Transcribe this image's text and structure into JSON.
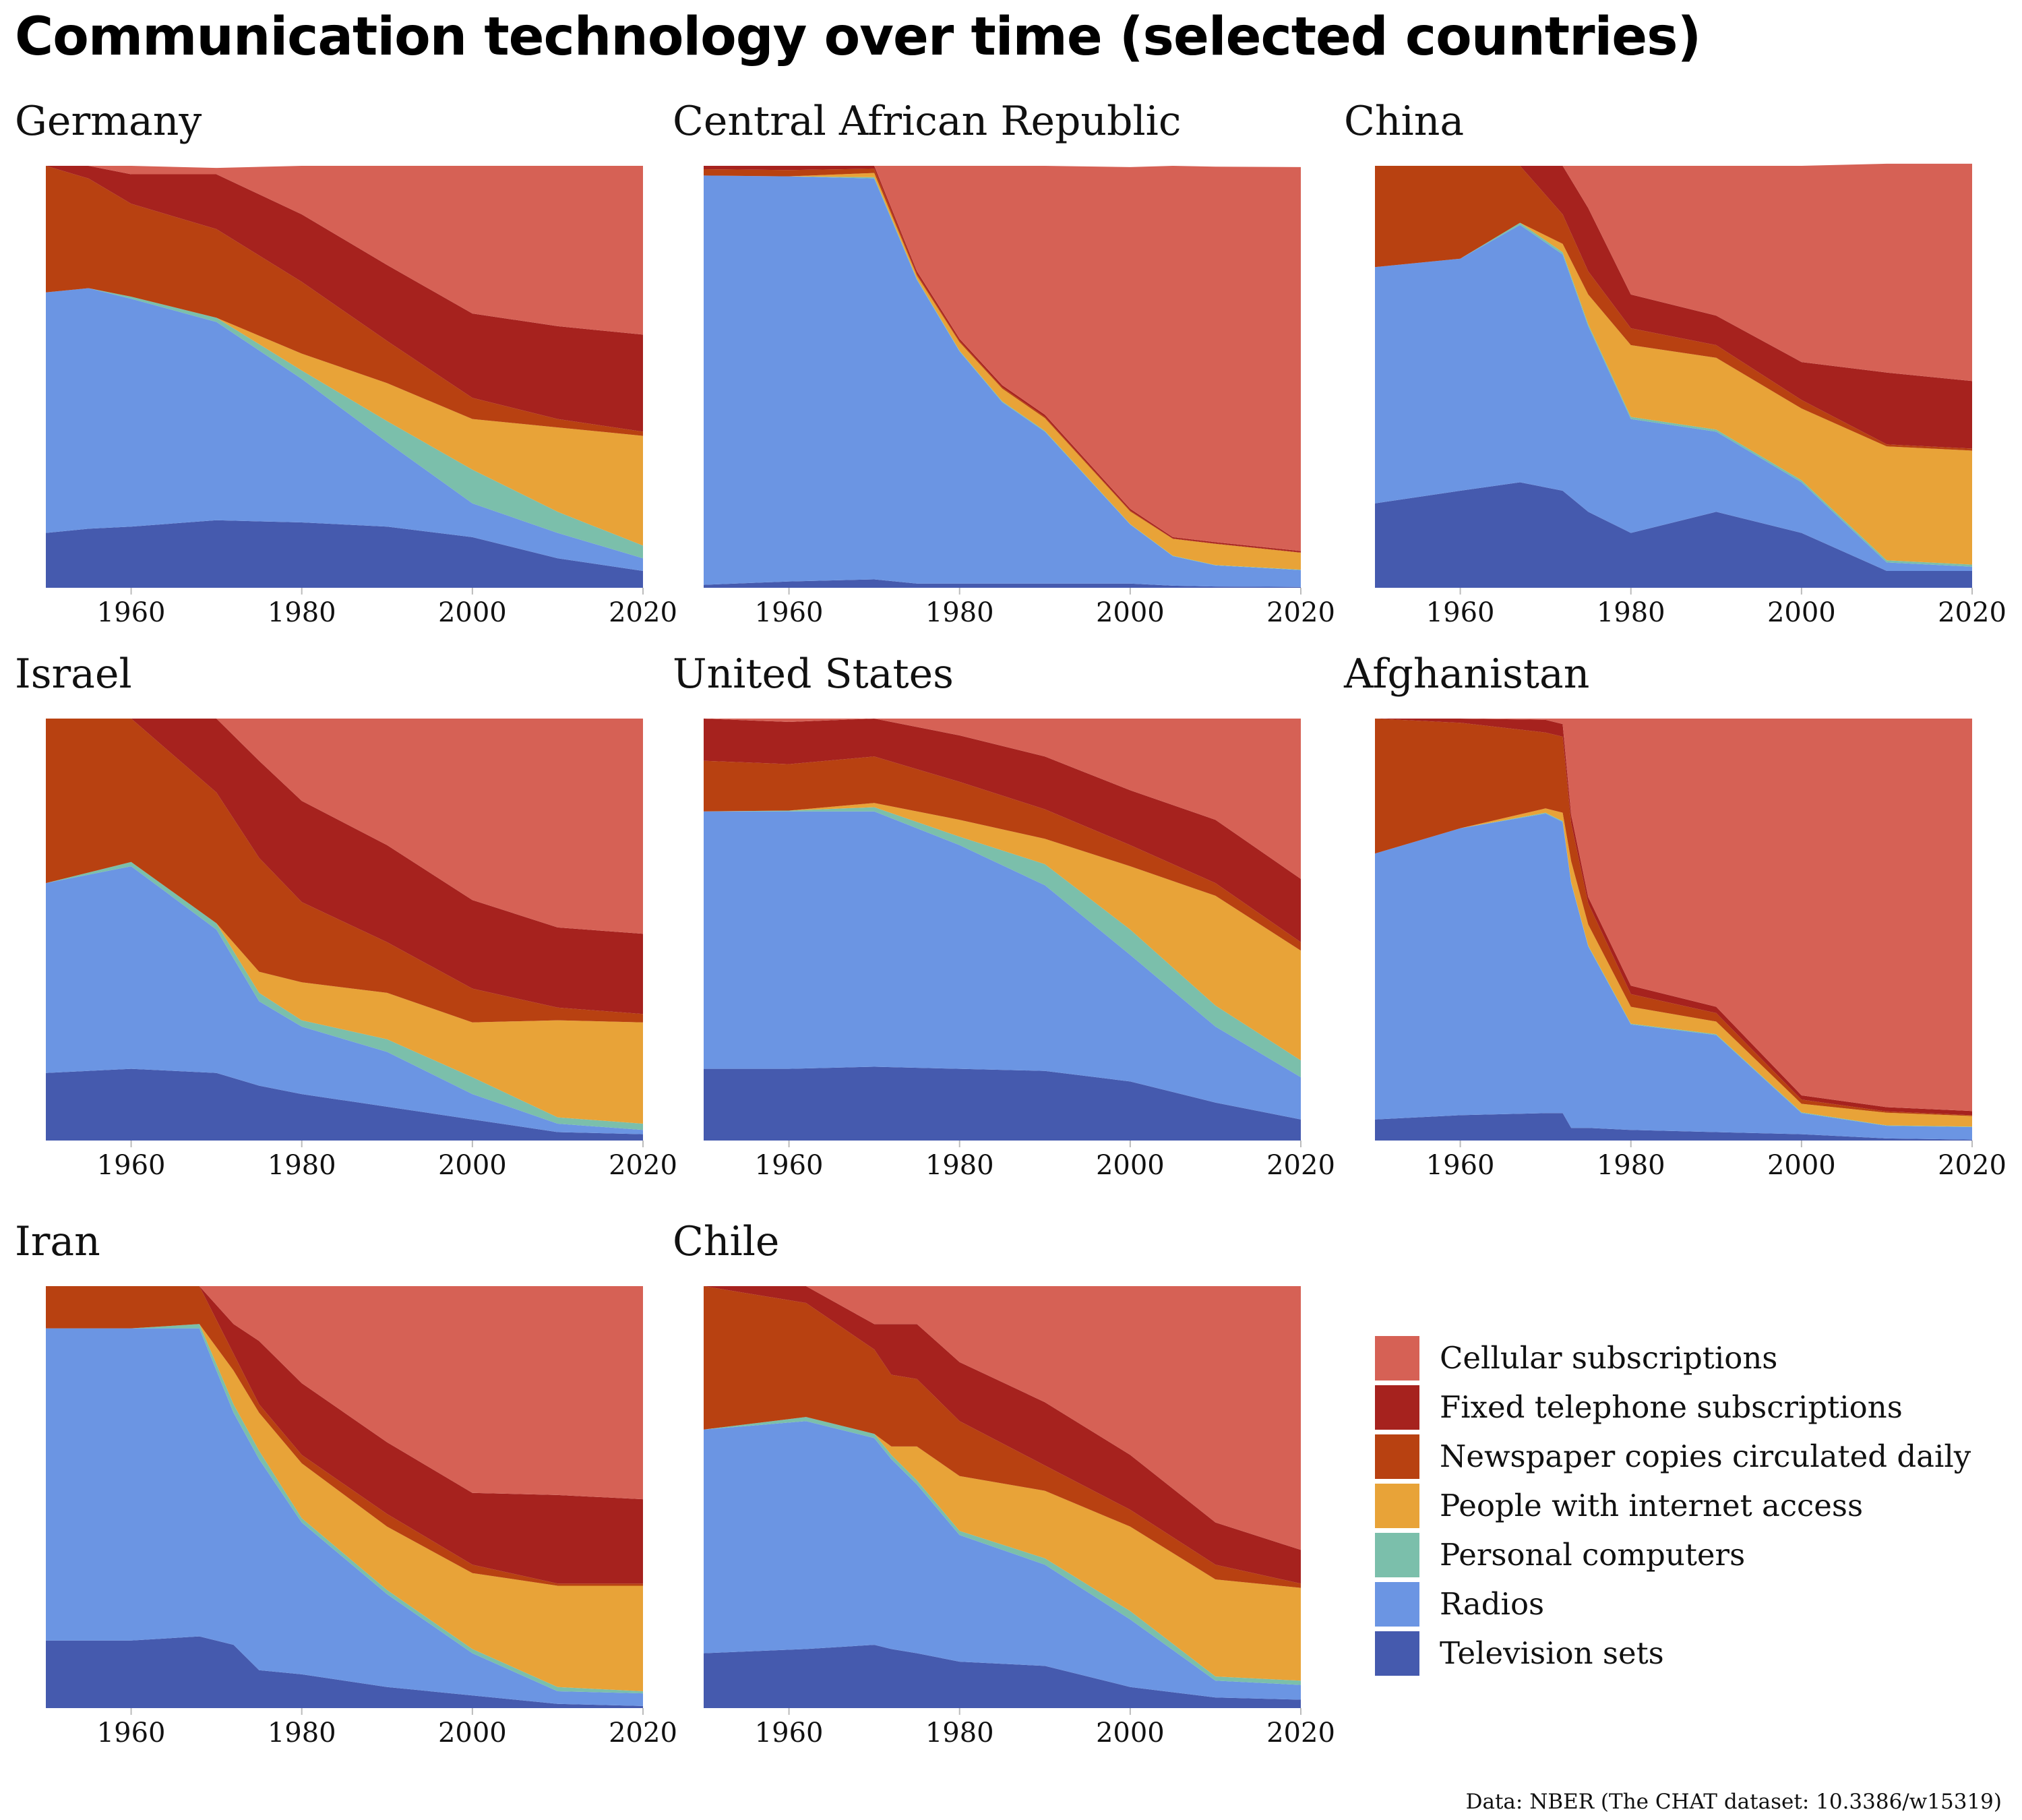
{
  "title": "Communication technology over time (selected countries)",
  "source": "Data: NBER (The CHAT dataset: 10.3386/w15319)",
  "legend": [
    {
      "label": "Cellular subscriptions",
      "color": "#d66155"
    },
    {
      "label": "Fixed telephone subscriptions",
      "color": "#a6221e"
    },
    {
      "label": "Newspaper copies circulated daily",
      "color": "#b84111"
    },
    {
      "label": "People with internet access",
      "color": "#e8a338"
    },
    {
      "label": "Personal computers",
      "color": "#7bbfab"
    },
    {
      "label": "Radios",
      "color": "#6b95e3"
    },
    {
      "label": "Television sets",
      "color": "#455aae"
    }
  ],
  "chart_data": {
    "type": "area",
    "stacked": "100%",
    "xlim": [
      1950,
      2020
    ],
    "x_ticks": [
      "1960",
      "1980",
      "2000",
      "2020"
    ],
    "series_order": [
      "Television sets",
      "Radios",
      "Personal computers",
      "People with internet access",
      "Newspaper copies circulated daily",
      "Fixed telephone subscriptions",
      "Cellular subscriptions"
    ],
    "panels": [
      {
        "title": "Germany",
        "x": [
          1950,
          1955,
          1960,
          1970,
          1980,
          1990,
          2000,
          2010,
          2020
        ],
        "shares": [
          [
            0.13,
            0.14,
            0.145,
            0.16,
            0.155,
            0.145,
            0.12,
            0.07,
            0.04
          ],
          [
            0.57,
            0.57,
            0.54,
            0.47,
            0.34,
            0.2,
            0.08,
            0.06,
            0.03
          ],
          [
            0,
            0,
            0.005,
            0.01,
            0.02,
            0.05,
            0.08,
            0.05,
            0.03
          ],
          [
            0,
            0,
            0,
            0,
            0.04,
            0.09,
            0.12,
            0.2,
            0.26
          ],
          [
            0.3,
            0.26,
            0.22,
            0.21,
            0.17,
            0.1,
            0.05,
            0.02,
            0.01
          ],
          [
            0,
            0.03,
            0.07,
            0.13,
            0.16,
            0.18,
            0.2,
            0.22,
            0.23
          ],
          [
            0,
            0,
            0.02,
            0.015,
            0.115,
            0.235,
            0.35,
            0.38,
            0.4
          ]
        ]
      },
      {
        "title": "Central African Republic",
        "x": [
          1950,
          1960,
          1970,
          1975,
          1980,
          1985,
          1990,
          2000,
          2005,
          2010,
          2020
        ],
        "shares": [
          [
            0.007,
            0.015,
            0.02,
            0.01,
            0.01,
            0.01,
            0.01,
            0.01,
            0.005,
            0.003,
            0.002
          ],
          [
            0.97,
            0.96,
            0.95,
            0.72,
            0.55,
            0.43,
            0.36,
            0.14,
            0.07,
            0.05,
            0.04
          ],
          [
            0,
            0,
            0.003,
            0.002,
            0.002,
            0.002,
            0.002,
            0.001,
            0.001,
            0.001,
            0.001
          ],
          [
            0,
            0,
            0.01,
            0.008,
            0.02,
            0.03,
            0.03,
            0.03,
            0.04,
            0.05,
            0.04
          ],
          [
            0.015,
            0.015,
            0.01,
            0.004,
            0.003,
            0.003,
            0.003,
            0.002,
            0.001,
            0.001,
            0.001
          ],
          [
            0.008,
            0.01,
            0.007,
            0.006,
            0.005,
            0.005,
            0.005,
            0.004,
            0.003,
            0.003,
            0.003
          ],
          [
            0,
            0,
            0,
            0.25,
            0.41,
            0.52,
            0.59,
            0.81,
            0.88,
            0.89,
            0.91
          ]
        ]
      },
      {
        "title": "China",
        "x": [
          1950,
          1960,
          1967,
          1972,
          1975,
          1980,
          1990,
          2000,
          2010,
          2020
        ],
        "shares": [
          [
            0.2,
            0.23,
            0.25,
            0.23,
            0.18,
            0.13,
            0.18,
            0.13,
            0.04,
            0.04
          ],
          [
            0.56,
            0.55,
            0.61,
            0.56,
            0.44,
            0.27,
            0.19,
            0.12,
            0.02,
            0.01
          ],
          [
            0,
            0,
            0.005,
            0.005,
            0.005,
            0.005,
            0.005,
            0.005,
            0.005,
            0.005
          ],
          [
            0,
            0,
            0,
            0.02,
            0.07,
            0.17,
            0.17,
            0.17,
            0.27,
            0.27
          ],
          [
            0.24,
            0.22,
            0.135,
            0.07,
            0.055,
            0.04,
            0.03,
            0.02,
            0.005,
            0.005
          ],
          [
            0,
            0,
            0,
            0.115,
            0.15,
            0.08,
            0.07,
            0.09,
            0.17,
            0.16
          ],
          [
            0,
            0,
            0,
            0,
            0.1,
            0.305,
            0.355,
            0.465,
            0.495,
            0.515
          ]
        ]
      },
      {
        "title": "Israel",
        "x": [
          1950,
          1960,
          1970,
          1975,
          1980,
          1990,
          2000,
          2010,
          2020
        ],
        "shares": [
          [
            0.16,
            0.17,
            0.16,
            0.13,
            0.11,
            0.08,
            0.05,
            0.02,
            0.015
          ],
          [
            0.45,
            0.48,
            0.34,
            0.2,
            0.16,
            0.13,
            0.06,
            0.02,
            0.01
          ],
          [
            0,
            0.01,
            0.015,
            0.02,
            0.015,
            0.03,
            0.04,
            0.015,
            0.015
          ],
          [
            0,
            0,
            0,
            0.05,
            0.09,
            0.11,
            0.13,
            0.23,
            0.24
          ],
          [
            0.39,
            0.34,
            0.31,
            0.27,
            0.19,
            0.12,
            0.08,
            0.03,
            0.02
          ],
          [
            0,
            0,
            0.175,
            0.23,
            0.24,
            0.23,
            0.21,
            0.19,
            0.19
          ],
          [
            0,
            0,
            0,
            0.1,
            0.195,
            0.3,
            0.43,
            0.495,
            0.51
          ]
        ]
      },
      {
        "title": "United States",
        "x": [
          1950,
          1960,
          1970,
          1980,
          1990,
          2000,
          2010,
          2020
        ],
        "shares": [
          [
            0.17,
            0.17,
            0.175,
            0.17,
            0.165,
            0.14,
            0.09,
            0.05
          ],
          [
            0.61,
            0.61,
            0.605,
            0.53,
            0.44,
            0.3,
            0.18,
            0.1
          ],
          [
            0,
            0.002,
            0.01,
            0.02,
            0.05,
            0.06,
            0.05,
            0.04
          ],
          [
            0,
            0,
            0.01,
            0.04,
            0.06,
            0.15,
            0.26,
            0.26
          ],
          [
            0.12,
            0.11,
            0.11,
            0.09,
            0.07,
            0.05,
            0.03,
            0.02
          ],
          [
            0.1,
            0.1,
            0.09,
            0.11,
            0.125,
            0.13,
            0.15,
            0.15
          ],
          [
            0,
            0.008,
            0,
            0.04,
            0.09,
            0.17,
            0.24,
            0.38
          ]
        ]
      },
      {
        "title": "Afghanistan",
        "x": [
          1950,
          1960,
          1970,
          1972,
          1973,
          1975,
          1980,
          1990,
          2000,
          2010,
          2020
        ],
        "shares": [
          [
            0.05,
            0.06,
            0.065,
            0.065,
            0.03,
            0.03,
            0.025,
            0.02,
            0.015,
            0.005,
            0.002
          ],
          [
            0.63,
            0.68,
            0.71,
            0.69,
            0.58,
            0.43,
            0.25,
            0.23,
            0.05,
            0.03,
            0.03
          ],
          [
            0,
            0,
            0.002,
            0.002,
            0.002,
            0.002,
            0.002,
            0.002,
            0.002,
            0.001,
            0.001
          ],
          [
            0,
            0,
            0.01,
            0.02,
            0.05,
            0.05,
            0.04,
            0.03,
            0.02,
            0.03,
            0.025
          ],
          [
            0.32,
            0.25,
            0.18,
            0.18,
            0.09,
            0.05,
            0.03,
            0.02,
            0.01,
            0.003,
            0.002
          ],
          [
            0,
            0.01,
            0.03,
            0.03,
            0.02,
            0.015,
            0.02,
            0.015,
            0.01,
            0.01,
            0.01
          ],
          [
            0,
            0,
            0.003,
            0.013,
            0.228,
            0.423,
            0.633,
            0.683,
            0.893,
            0.921,
            0.93
          ]
        ]
      },
      {
        "title": "Iran",
        "x": [
          1950,
          1960,
          1968,
          1972,
          1975,
          1980,
          1990,
          2000,
          2010,
          2020
        ],
        "shares": [
          [
            0.16,
            0.16,
            0.17,
            0.15,
            0.09,
            0.08,
            0.05,
            0.03,
            0.01,
            0.005
          ],
          [
            0.74,
            0.74,
            0.73,
            0.55,
            0.5,
            0.36,
            0.22,
            0.1,
            0.03,
            0.03
          ],
          [
            0,
            0,
            0.01,
            0.02,
            0.02,
            0.01,
            0.01,
            0.01,
            0.01,
            0.005
          ],
          [
            0,
            0,
            0,
            0.08,
            0.09,
            0.13,
            0.15,
            0.18,
            0.24,
            0.25
          ],
          [
            0.1,
            0.1,
            0.09,
            0.04,
            0.02,
            0.02,
            0.03,
            0.02,
            0.005,
            0.005
          ],
          [
            0,
            0,
            0,
            0.07,
            0.15,
            0.17,
            0.17,
            0.17,
            0.21,
            0.2
          ],
          [
            0,
            0,
            0,
            0.09,
            0.13,
            0.23,
            0.37,
            0.49,
            0.495,
            0.505
          ]
        ]
      },
      {
        "title": "Chile",
        "x": [
          1950,
          1962,
          1970,
          1972,
          1975,
          1980,
          1990,
          2000,
          2010,
          2020
        ],
        "shares": [
          [
            0.13,
            0.14,
            0.15,
            0.14,
            0.13,
            0.11,
            0.1,
            0.05,
            0.025,
            0.02
          ],
          [
            0.53,
            0.54,
            0.49,
            0.45,
            0.4,
            0.3,
            0.24,
            0.16,
            0.04,
            0.035
          ],
          [
            0,
            0.01,
            0.01,
            0.01,
            0.01,
            0.01,
            0.015,
            0.02,
            0.01,
            0.01
          ],
          [
            0,
            0,
            0,
            0.02,
            0.08,
            0.13,
            0.16,
            0.2,
            0.23,
            0.22
          ],
          [
            0.34,
            0.27,
            0.2,
            0.17,
            0.16,
            0.13,
            0.06,
            0.04,
            0.035,
            0.01
          ],
          [
            0,
            0.04,
            0.06,
            0.12,
            0.13,
            0.14,
            0.15,
            0.13,
            0.1,
            0.08
          ],
          [
            0,
            0,
            0.09,
            0.09,
            0.09,
            0.18,
            0.275,
            0.4,
            0.56,
            0.625
          ]
        ]
      }
    ]
  }
}
